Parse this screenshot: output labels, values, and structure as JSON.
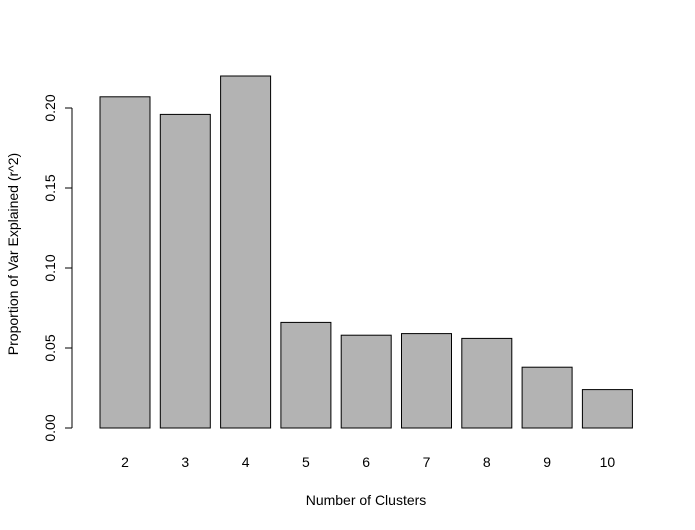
{
  "chart_data": {
    "type": "bar",
    "categories": [
      "2",
      "3",
      "4",
      "5",
      "6",
      "7",
      "8",
      "9",
      "10"
    ],
    "values": [
      0.207,
      0.196,
      0.22,
      0.066,
      0.058,
      0.059,
      0.056,
      0.038,
      0.024
    ],
    "title": "",
    "xlabel": "Number of Clusters",
    "ylabel": "Proportion of Var Explained (r^2)",
    "ylim": [
      0,
      0.22
    ],
    "yticks": [
      "0.00",
      "0.05",
      "0.10",
      "0.15",
      "0.20"
    ],
    "bar_color": "#b3b3b3",
    "grid": false,
    "legend": "none"
  }
}
